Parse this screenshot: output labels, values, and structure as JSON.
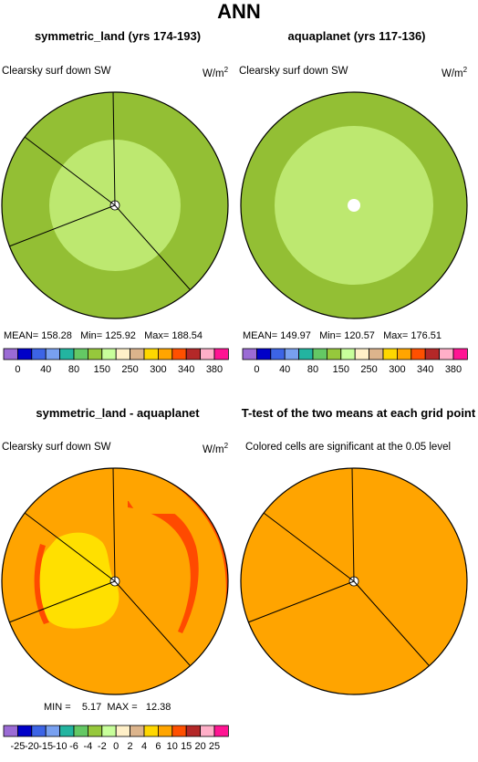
{
  "figure_title": "ANN",
  "colors": {
    "ring": "#93bf34",
    "inner": "#bde870",
    "diff_bg": "#ffa400",
    "diff_yellow": "#ffe000",
    "diff_red": "#ff4a00",
    "border": "#000000",
    "spoke": "#000000"
  },
  "panels": [
    {
      "title": "symmetric_land (yrs 174-193)",
      "variable": "Clearsky surf down SW",
      "units_base": "W/m",
      "units_exp": "2",
      "stats": "MEAN= 158.28   Min= 125.92   Max= 188.54"
    },
    {
      "title": "aquaplanet (yrs 117-136)",
      "variable": "Clearsky surf down SW",
      "units_base": "W/m",
      "units_exp": "2",
      "stats": "MEAN= 149.97   Min= 120.57   Max= 176.51"
    },
    {
      "title": "symmetric_land - aquaplanet",
      "variable": "Clearsky surf down SW",
      "units_base": "W/m",
      "units_exp": "2",
      "stats": "MIN =    5.17  MAX =   12.38"
    },
    {
      "title": "T-test of the two means at each grid point",
      "variable": "Colored cells are significant at the 0.05 level",
      "units_base": "",
      "units_exp": "",
      "stats": ""
    }
  ],
  "colorbars": [
    {
      "colors": [
        "#9b6bd5",
        "#0000c8",
        "#3c64e6",
        "#78a0f0",
        "#23b4a0",
        "#64c864",
        "#96c83c",
        "#c8ff9b",
        "#fff0c8",
        "#dcb48c",
        "#ffd700",
        "#ffa500",
        "#ff5000",
        "#b42828",
        "#ffafc8",
        "#ff1493"
      ],
      "labels": [
        "0",
        "40",
        "80",
        "150",
        "250",
        "300",
        "340",
        "380"
      ]
    },
    {
      "colors": [
        "#9b6bd5",
        "#0000c8",
        "#3c64e6",
        "#78a0f0",
        "#23b4a0",
        "#64c864",
        "#96c83c",
        "#c8ff9b",
        "#fff0c8",
        "#dcb48c",
        "#ffd700",
        "#ffa500",
        "#ff5000",
        "#b42828",
        "#ffafc8",
        "#ff1493"
      ],
      "labels": [
        "0",
        "40",
        "80",
        "150",
        "250",
        "300",
        "340",
        "380"
      ]
    },
    {
      "colors": [
        "#9b6bd5",
        "#0000c8",
        "#3c64e6",
        "#78a0f0",
        "#23b4a0",
        "#64c864",
        "#96c83c",
        "#c8ff9b",
        "#fff0c8",
        "#dcb48c",
        "#ffd700",
        "#ffa500",
        "#ff5000",
        "#b42828",
        "#ffafc8",
        "#ff1493"
      ],
      "labels": [
        "-25",
        "-20",
        "-15",
        "-10",
        "-6",
        "-4",
        "-2",
        "0",
        "2",
        "4",
        "6",
        "10",
        "15",
        "20",
        "25"
      ]
    }
  ],
  "chart_data": [
    {
      "type": "heatmap",
      "title": "symmetric_land (yrs 174-193)",
      "variable": "Clearsky surf down SW",
      "projection": "polar",
      "mean": 158.28,
      "min": 125.92,
      "max": 188.54,
      "contour_levels": [
        0,
        40,
        80,
        150,
        250,
        300,
        340,
        380
      ]
    },
    {
      "type": "heatmap",
      "title": "aquaplanet (yrs 117-136)",
      "variable": "Clearsky surf down SW",
      "projection": "polar",
      "mean": 149.97,
      "min": 120.57,
      "max": 176.51,
      "contour_levels": [
        0,
        40,
        80,
        150,
        250,
        300,
        340,
        380
      ]
    },
    {
      "type": "heatmap",
      "title": "symmetric_land - aquaplanet",
      "variable": "Clearsky surf down SW",
      "projection": "polar",
      "min": 5.17,
      "max": 12.38,
      "contour_levels": [
        -25,
        -20,
        -15,
        -10,
        -6,
        -4,
        -2,
        0,
        2,
        4,
        6,
        10,
        15,
        20,
        25
      ]
    },
    {
      "type": "heatmap",
      "title": "T-test of the two means at each grid point",
      "note": "Colored cells are significant at the 0.05 level",
      "projection": "polar"
    }
  ]
}
